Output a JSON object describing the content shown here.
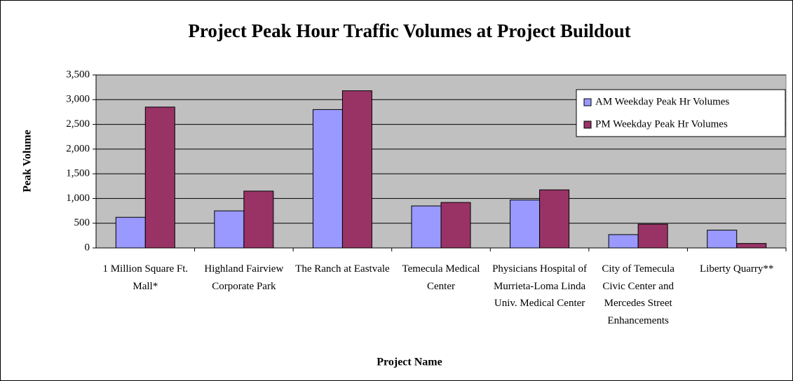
{
  "chart_data": {
    "type": "bar",
    "title": "Project Peak Hour Traffic Volumes at Project Buildout",
    "x_label": "Project Name",
    "y_label": "Peak Volume",
    "categories": [
      "1 Million Square Ft. Mall*",
      "Highland Fairview Corporate Park",
      "The Ranch at Eastvale",
      "Temecula Medical Center",
      "Physicians Hospital of Murrieta-Loma Linda Univ. Medical Center",
      "City of Temecula Civic Center and Mercedes Street Enhancements",
      "Liberty Quarry**"
    ],
    "series": [
      {
        "name": "AM Weekday Peak Hr Volumes",
        "color": "#9999ff",
        "values": [
          620,
          750,
          2800,
          850,
          970,
          270,
          360
        ]
      },
      {
        "name": "PM Weekday Peak Hr Volumes",
        "color": "#993366",
        "values": [
          2850,
          1150,
          3180,
          920,
          1175,
          480,
          90
        ]
      }
    ],
    "ylim": [
      0,
      3500
    ],
    "yticks": [
      0,
      500,
      {
        "value": 1000,
        "label": "1,000"
      },
      {
        "value": 1500,
        "label": "1,500"
      },
      {
        "value": 2000,
        "label": "2,000"
      },
      {
        "value": 2500,
        "label": "2,500"
      },
      {
        "value": 3000,
        "label": "3,000"
      },
      {
        "value": 3500,
        "label": "3,500"
      }
    ],
    "grid": true,
    "legend": "top-right",
    "plot_background": "#c0c0c0"
  }
}
